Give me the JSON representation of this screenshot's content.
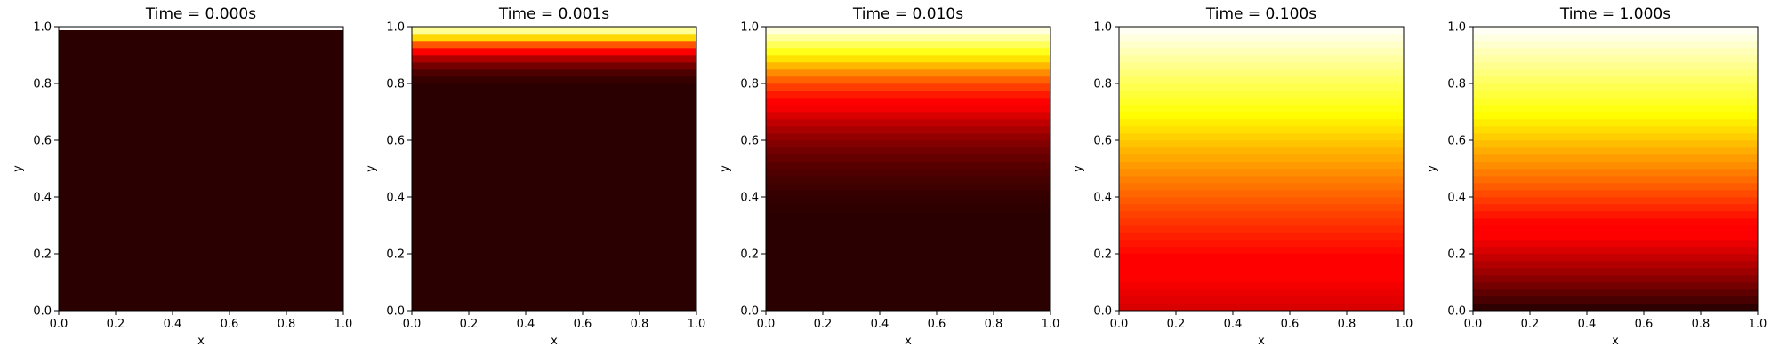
{
  "chart_data": [
    {
      "type": "heatmap",
      "title": "Time = 0.000s",
      "time": 0.0,
      "xlabel": "x",
      "ylabel": "y",
      "xlim": [
        0,
        1
      ],
      "ylim": [
        0,
        1
      ],
      "xticks": [
        "0.0",
        "0.2",
        "0.4",
        "0.6",
        "0.8",
        "1.0"
      ],
      "yticks": [
        "0.0",
        "0.2",
        "0.4",
        "0.6",
        "0.8",
        "1.0"
      ],
      "colormap": "hot",
      "grid": false,
      "field": "heat conduction from the top boundary (y = 1); value constant in x, varies with y"
    },
    {
      "type": "heatmap",
      "title": "Time = 0.001s",
      "time": 0.001,
      "xlabel": "x",
      "ylabel": "y",
      "xlim": [
        0,
        1
      ],
      "ylim": [
        0,
        1
      ],
      "xticks": [
        "0.0",
        "0.2",
        "0.4",
        "0.6",
        "0.8",
        "1.0"
      ],
      "yticks": [
        "0.0",
        "0.2",
        "0.4",
        "0.6",
        "0.8",
        "1.0"
      ],
      "colormap": "hot",
      "grid": false
    },
    {
      "type": "heatmap",
      "title": "Time = 0.010s",
      "time": 0.01,
      "xlabel": "x",
      "ylabel": "y",
      "xlim": [
        0,
        1
      ],
      "ylim": [
        0,
        1
      ],
      "xticks": [
        "0.0",
        "0.2",
        "0.4",
        "0.6",
        "0.8",
        "1.0"
      ],
      "yticks": [
        "0.0",
        "0.2",
        "0.4",
        "0.6",
        "0.8",
        "1.0"
      ],
      "colormap": "hot",
      "grid": false
    },
    {
      "type": "heatmap",
      "title": "Time = 0.100s",
      "time": 0.1,
      "xlabel": "x",
      "ylabel": "y",
      "xlim": [
        0,
        1
      ],
      "ylim": [
        0,
        1
      ],
      "xticks": [
        "0.0",
        "0.2",
        "0.4",
        "0.6",
        "0.8",
        "1.0"
      ],
      "yticks": [
        "0.0",
        "0.2",
        "0.4",
        "0.6",
        "0.8",
        "1.0"
      ],
      "colormap": "hot",
      "grid": false
    },
    {
      "type": "heatmap",
      "title": "Time = 1.000s",
      "time": 1.0,
      "xlabel": "x",
      "ylabel": "y",
      "xlim": [
        0,
        1
      ],
      "ylim": [
        0,
        1
      ],
      "xticks": [
        "0.0",
        "0.2",
        "0.4",
        "0.6",
        "0.8",
        "1.0"
      ],
      "yticks": [
        "0.0",
        "0.2",
        "0.4",
        "0.6",
        "0.8",
        "1.0"
      ],
      "colormap": "hot",
      "grid": false
    }
  ]
}
